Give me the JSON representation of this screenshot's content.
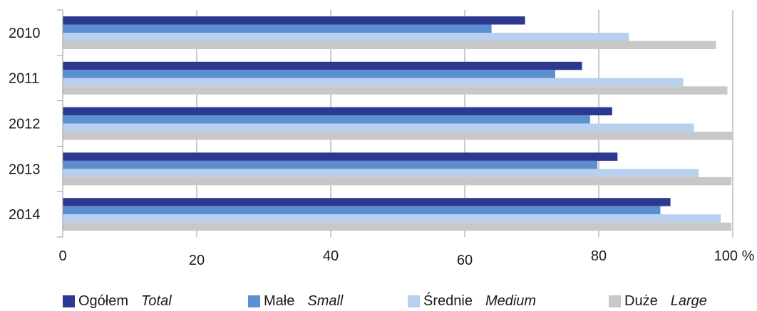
{
  "chart_data": {
    "type": "bar",
    "orientation": "horizontal",
    "categories": [
      "2010",
      "2011",
      "2012",
      "2013",
      "2014"
    ],
    "series": [
      {
        "name": "Ogółem",
        "name_en": "Total",
        "color": "#2b3990",
        "values": [
          69.0,
          77.5,
          82.0,
          82.8,
          90.7
        ]
      },
      {
        "name": "Małe",
        "name_en": "Small",
        "color": "#5b8fd0",
        "values": [
          64.0,
          73.5,
          78.7,
          79.8,
          89.2
        ]
      },
      {
        "name": "Średnie",
        "name_en": "Medium",
        "color": "#b8d0ee",
        "values": [
          84.5,
          92.6,
          94.2,
          94.9,
          98.2
        ]
      },
      {
        "name": "Duże",
        "name_en": "Large",
        "color": "#c8c8c8",
        "values": [
          97.5,
          99.2,
          99.9,
          99.8,
          99.8
        ]
      }
    ],
    "xlim": [
      0,
      100
    ],
    "xticks": [
      "0",
      "20",
      "40",
      "60",
      "80",
      "100 %"
    ],
    "grid": true,
    "legend_position": "bottom"
  }
}
